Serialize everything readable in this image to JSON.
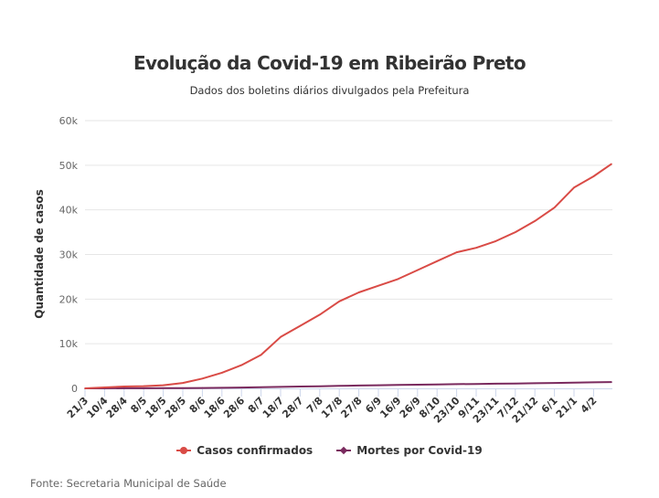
{
  "chart_data": {
    "type": "line",
    "title": "Evolução da Covid-19 em Ribeirão Preto",
    "subtitle": "Dados dos boletins diários divulgados pela Prefeitura",
    "xlabel": "",
    "ylabel": "Quantidade de casos",
    "ylim": [
      0,
      60000
    ],
    "yticks": [
      0,
      10000,
      20000,
      30000,
      40000,
      50000,
      60000
    ],
    "ytick_labels": [
      "0",
      "10k",
      "20k",
      "30k",
      "40k",
      "50k",
      "60k"
    ],
    "categories": [
      "21/3",
      "10/4",
      "28/4",
      "8/5",
      "18/5",
      "28/5",
      "8/6",
      "18/6",
      "28/6",
      "8/7",
      "18/7",
      "28/7",
      "7/8",
      "17/8",
      "27/8",
      "6/9",
      "16/9",
      "26/9",
      "8/10",
      "23/10",
      "9/11",
      "23/11",
      "7/12",
      "21/12",
      "6/1",
      "21/1",
      "4/2",
      ""
    ],
    "x_tick_labels": [
      "21/3",
      "10/4",
      "28/4",
      "8/5",
      "18/5",
      "28/5",
      "8/6",
      "18/6",
      "28/6",
      "8/7",
      "18/7",
      "28/7",
      "7/8",
      "17/8",
      "27/8",
      "6/9",
      "16/9",
      "26/9",
      "8/10",
      "23/10",
      "9/11",
      "23/11",
      "7/12",
      "21/12",
      "6/1",
      "21/1",
      "4/2"
    ],
    "grid": true,
    "legend_position": "bottom",
    "series": [
      {
        "name": "Casos confirmados",
        "color": "#d94b46",
        "values": [
          0,
          200,
          400,
          500,
          700,
          1200,
          2200,
          3500,
          5200,
          7500,
          11500,
          14000,
          16500,
          19500,
          21500,
          23000,
          24500,
          26500,
          28500,
          30500,
          31500,
          33000,
          35000,
          37500,
          40500,
          45000,
          47500,
          50300
        ]
      },
      {
        "name": "Mortes por Covid-19",
        "color": "#7a2a5e",
        "values": [
          0,
          10,
          20,
          30,
          40,
          60,
          90,
          130,
          180,
          240,
          320,
          400,
          480,
          560,
          640,
          700,
          760,
          820,
          880,
          940,
          990,
          1040,
          1090,
          1140,
          1200,
          1280,
          1360,
          1420
        ]
      }
    ]
  },
  "source": "Fonte: Secretaria Municipal de Saúde"
}
